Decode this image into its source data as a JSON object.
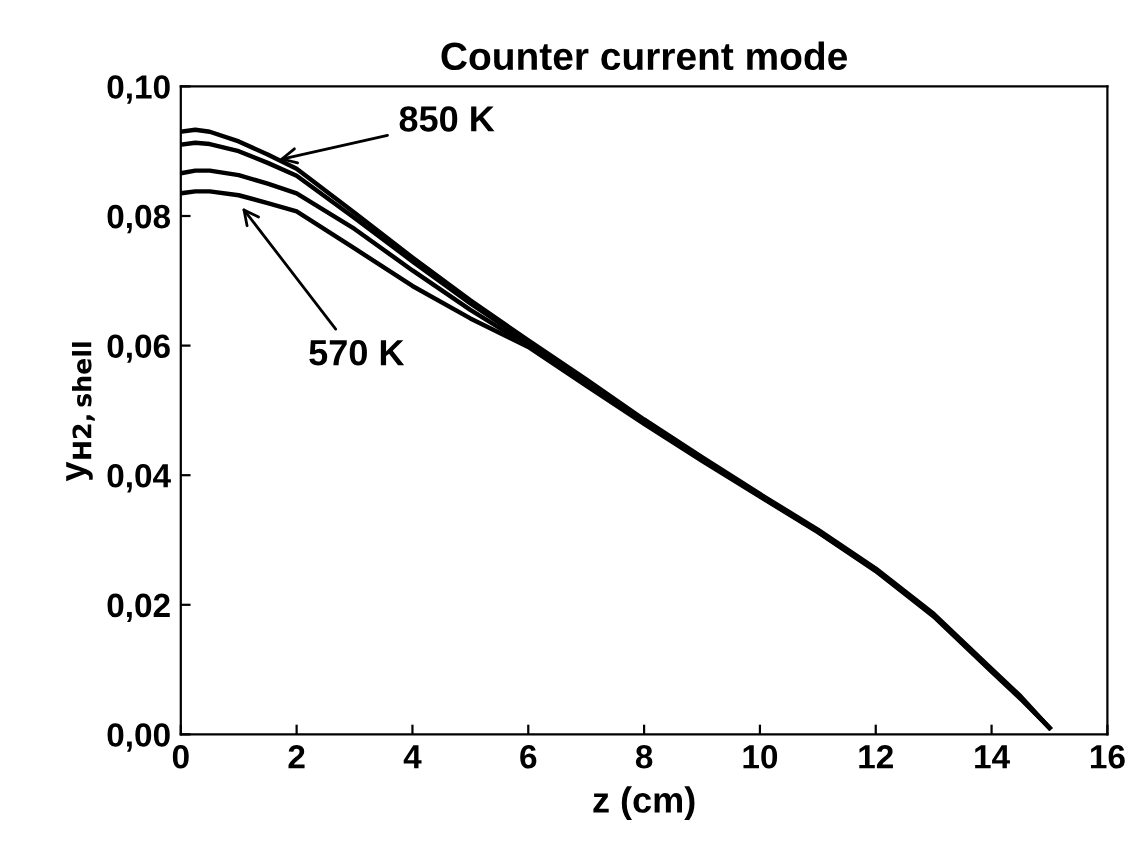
{
  "chart_data": {
    "type": "line",
    "title": "Counter current mode",
    "xlabel": "z (cm)",
    "ylabel": "y$_{H2,shell}$",
    "xlim": [
      0,
      16
    ],
    "xticks": [
      0,
      2,
      4,
      6,
      8,
      10,
      12,
      14,
      16
    ],
    "ylim": [
      0,
      0.1
    ],
    "yticks": [
      {
        "value": 0,
        "label": "0,00"
      },
      {
        "value": 0.02,
        "label": "0,02"
      },
      {
        "value": 0.04,
        "label": "0,04"
      },
      {
        "value": 0.06,
        "label": "0,06"
      },
      {
        "value": 0.08,
        "label": "0,08"
      },
      {
        "value": 0.1,
        "label": "0,10"
      }
    ],
    "x": [
      0,
      0.25,
      0.5,
      1,
      1.5,
      2,
      3,
      4,
      5,
      6,
      7,
      8,
      9,
      10,
      11,
      12,
      13,
      14,
      14.5,
      15
    ],
    "series": [
      {
        "color": "#000000",
        "values": [
          0.093,
          0.0933,
          0.093,
          0.0915,
          0.0895,
          0.0873,
          0.0805,
          0.0736,
          0.067,
          0.0608,
          0.0548,
          0.0486,
          0.0428,
          0.0371,
          0.0316,
          0.0256,
          0.0186,
          0.0101,
          0.0059,
          0.001
        ]
      },
      {
        "color": "#000000",
        "values": [
          0.091,
          0.0913,
          0.0911,
          0.09,
          0.0882,
          0.0862,
          0.0797,
          0.073,
          0.0665,
          0.0605,
          0.0545,
          0.0484,
          0.0426,
          0.0369,
          0.0314,
          0.0254,
          0.0184,
          0.0099,
          0.0057,
          0.001
        ]
      },
      {
        "color": "#000000",
        "values": [
          0.0866,
          0.087,
          0.087,
          0.0863,
          0.085,
          0.0835,
          0.078,
          0.0716,
          0.0655,
          0.06,
          0.0541,
          0.0481,
          0.0424,
          0.0368,
          0.0313,
          0.0253,
          0.0183,
          0.0098,
          0.0056,
          0.001
        ]
      },
      {
        "color": "#000000",
        "values": [
          0.0835,
          0.0838,
          0.0838,
          0.0832,
          0.082,
          0.0807,
          0.075,
          0.0692,
          0.0642,
          0.0598,
          0.0538,
          0.0479,
          0.0422,
          0.0367,
          0.0312,
          0.0252,
          0.0182,
          0.0097,
          0.0055,
          0.001
        ]
      }
    ],
    "annotations": [
      {
        "text": "850 K",
        "x": 1.6,
        "y": 0.0885
      },
      {
        "text": "570 K",
        "x": 1.0,
        "y": 0.082
      }
    ],
    "grid": false,
    "legend": false,
    "marker": "none",
    "line_style": "solid"
  }
}
